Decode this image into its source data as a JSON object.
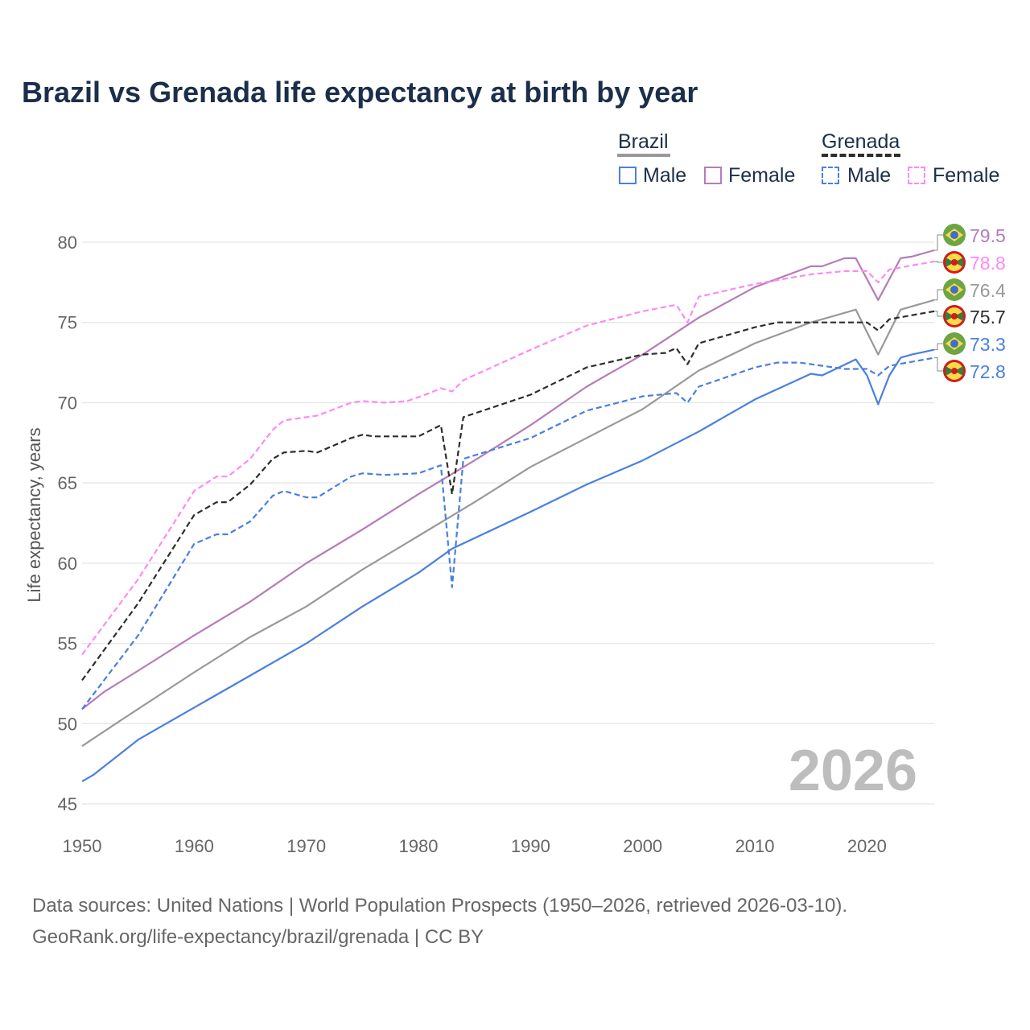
{
  "title": "Brazil vs Grenada life expectancy at birth by year",
  "legend": {
    "group1": "Brazil",
    "group2": "Grenada",
    "male": "Male",
    "female": "Female"
  },
  "watermark_year": "2026",
  "source_line1": "Data sources: United Nations | World Population Prospects (1950–2026, retrieved 2026-03-10).",
  "source_line2": "GeoRank.org/life-expectancy/brazil/grenada | CC BY",
  "chart_data": {
    "type": "line",
    "title": "Brazil vs Grenada life expectancy at birth by year",
    "xlabel": "",
    "ylabel": "Life expectancy, years",
    "xlim": [
      1950,
      2026
    ],
    "ylim": [
      45,
      80
    ],
    "xticks": [
      "1950",
      "1960",
      "1970",
      "1980",
      "1990",
      "2000",
      "2010",
      "2020"
    ],
    "yticks": [
      "45",
      "50",
      "55",
      "60",
      "65",
      "70",
      "75",
      "80"
    ],
    "grid": true,
    "legend_position": "top-right",
    "series": [
      {
        "name": "Brazil Female",
        "country": "Brazil",
        "color": "#b67cb9",
        "dashed": false,
        "end_label": "79.5",
        "flag": "brazil",
        "x": [
          1950,
          1952,
          1955,
          1960,
          1965,
          1970,
          1975,
          1980,
          1985,
          1990,
          1995,
          2000,
          2005,
          2010,
          2015,
          2016,
          2018,
          2019,
          2021,
          2023,
          2024,
          2026
        ],
        "y": [
          50.9,
          52.0,
          53.3,
          55.5,
          57.6,
          60.0,
          62.1,
          64.3,
          66.4,
          68.6,
          71.0,
          73.0,
          75.3,
          77.2,
          78.5,
          78.5,
          79.0,
          79.0,
          76.4,
          79.0,
          79.1,
          79.5
        ]
      },
      {
        "name": "Grenada Female",
        "country": "Grenada",
        "color": "#ff88f5",
        "dashed": true,
        "end_label": "78.8",
        "flag": "grenada",
        "x": [
          1950,
          1955,
          1960,
          1962,
          1963,
          1965,
          1967,
          1968,
          1970,
          1971,
          1974,
          1975,
          1977,
          1979,
          1981,
          1982,
          1983,
          1984,
          1990,
          1995,
          2000,
          2003,
          2004,
          2005,
          2010,
          2015,
          2018,
          2020,
          2021,
          2022,
          2026
        ],
        "y": [
          54.3,
          59.0,
          64.5,
          65.4,
          65.4,
          66.5,
          68.3,
          68.9,
          69.1,
          69.2,
          70.0,
          70.1,
          70.0,
          70.1,
          70.6,
          70.9,
          70.7,
          71.4,
          73.3,
          74.8,
          75.7,
          76.1,
          75.0,
          76.6,
          77.4,
          78.0,
          78.2,
          78.2,
          77.5,
          78.3,
          78.8
        ]
      },
      {
        "name": "Brazil",
        "country": "Brazil",
        "color": "#999999",
        "dashed": false,
        "end_label": "76.4",
        "flag": "brazil",
        "x": [
          1950,
          1953,
          1960,
          1965,
          1970,
          1975,
          1980,
          1985,
          1990,
          1995,
          2000,
          2005,
          2010,
          2015,
          2019,
          2021,
          2023,
          2026
        ],
        "y": [
          48.6,
          50.0,
          53.2,
          55.4,
          57.3,
          59.6,
          61.7,
          63.8,
          66.0,
          67.8,
          69.6,
          72.0,
          73.7,
          75.0,
          75.8,
          73.0,
          75.8,
          76.4
        ]
      },
      {
        "name": "Grenada",
        "country": "Grenada",
        "color": "#2b2f2a",
        "dashed": true,
        "end_label": "75.7",
        "flag": "grenada",
        "x": [
          1950,
          1955,
          1960,
          1962,
          1963,
          1965,
          1967,
          1968,
          1970,
          1971,
          1974,
          1975,
          1976,
          1980,
          1982,
          1983,
          1984,
          1990,
          1995,
          2000,
          2002,
          2003,
          2004,
          2005,
          2010,
          2012,
          2020,
          2021,
          2022,
          2026
        ],
        "y": [
          52.7,
          57.5,
          63.0,
          63.8,
          63.8,
          64.9,
          66.5,
          66.9,
          67.0,
          66.9,
          67.8,
          68.0,
          67.9,
          67.9,
          68.6,
          64.3,
          69.1,
          70.5,
          72.2,
          73.0,
          73.1,
          73.4,
          72.4,
          73.7,
          74.7,
          75.0,
          75.0,
          74.5,
          75.2,
          75.7
        ]
      },
      {
        "name": "Brazil Male",
        "country": "Brazil",
        "color": "#4a7fe0",
        "dashed": false,
        "end_label": "73.3",
        "flag": "brazil",
        "x": [
          1950,
          1951,
          1955,
          1960,
          1965,
          1970,
          1975,
          1980,
          1983,
          1990,
          1995,
          2000,
          2005,
          2010,
          2015,
          2016,
          2019,
          2020,
          2021,
          2022,
          2023,
          2024,
          2026
        ],
        "y": [
          46.4,
          46.8,
          49.0,
          51.0,
          53.0,
          55.0,
          57.3,
          59.4,
          60.9,
          63.2,
          64.9,
          66.4,
          68.2,
          70.2,
          71.8,
          71.7,
          72.7,
          71.7,
          69.9,
          71.7,
          72.8,
          73.0,
          73.3
        ]
      },
      {
        "name": "Grenada Male",
        "country": "Grenada",
        "color": "#4a7fe0",
        "dashed": true,
        "end_label": "72.8",
        "flag": "grenada",
        "x": [
          1950,
          1955,
          1960,
          1962,
          1963,
          1965,
          1967,
          1968,
          1970,
          1971,
          1974,
          1975,
          1977,
          1980,
          1982,
          1983,
          1984,
          1990,
          1995,
          2000,
          2003,
          2004,
          2005,
          2010,
          2012,
          2014,
          2018,
          2020,
          2021,
          2022,
          2026
        ],
        "y": [
          50.9,
          55.5,
          61.2,
          61.8,
          61.8,
          62.6,
          64.2,
          64.5,
          64.1,
          64.1,
          65.4,
          65.6,
          65.5,
          65.6,
          66.1,
          58.5,
          66.5,
          67.8,
          69.5,
          70.4,
          70.6,
          70.0,
          71.0,
          72.2,
          72.5,
          72.5,
          72.1,
          72.1,
          71.7,
          72.3,
          72.8
        ]
      }
    ]
  }
}
